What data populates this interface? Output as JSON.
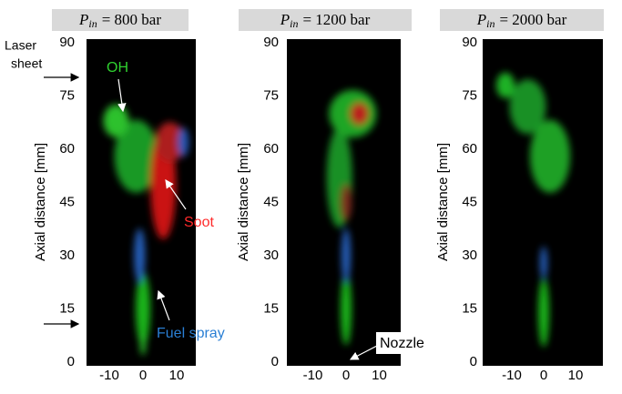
{
  "panels": [
    {
      "title": {
        "symbol": "P",
        "subscript": "in",
        "rest": "= 800 bar"
      },
      "y_label": "Axial distance [mm]",
      "y_ticks": [
        0,
        15,
        30,
        45,
        60,
        75,
        90
      ],
      "x_ticks": [
        -10,
        0,
        10
      ]
    },
    {
      "title": {
        "symbol": "P",
        "subscript": "in",
        "rest": "= 1200 bar"
      },
      "y_label": "Axial distance [mm]",
      "y_ticks": [
        0,
        15,
        30,
        45,
        60,
        75,
        90
      ],
      "x_ticks": [
        -10,
        0,
        10
      ]
    },
    {
      "title": {
        "symbol": "P",
        "subscript": "in",
        "rest": "= 2000 bar"
      },
      "y_label": "Axial distance [mm]",
      "y_ticks": [
        0,
        15,
        30,
        45,
        60,
        75,
        90
      ],
      "x_ticks": [
        -10,
        0,
        10
      ]
    }
  ],
  "annotations": {
    "laser_sheet": [
      "Laser",
      "sheet"
    ],
    "oh": "OH",
    "soot": "Soot",
    "fuel_spray": "Fuel spray",
    "nozzle": "Nozzle"
  }
}
